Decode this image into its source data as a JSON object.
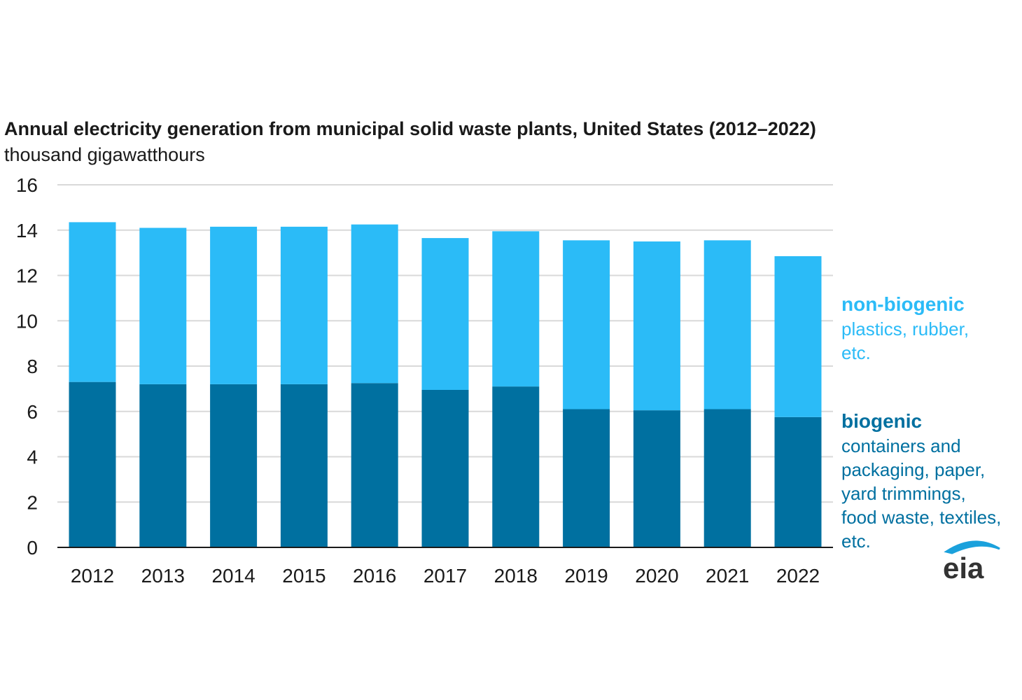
{
  "chart_data": {
    "type": "bar",
    "stacked": true,
    "title": "Annual electricity generation from municipal solid waste plants, United States (2012–2022)",
    "subtitle": "thousand gigawatthours",
    "categories": [
      "2012",
      "2013",
      "2014",
      "2015",
      "2016",
      "2017",
      "2018",
      "2019",
      "2020",
      "2021",
      "2022"
    ],
    "series": [
      {
        "name": "biogenic",
        "description": [
          "containers and",
          "packaging, paper,",
          "yard trimmings,",
          "food waste, textiles,",
          "etc."
        ],
        "color": "#0070a0",
        "values": [
          7.3,
          7.2,
          7.2,
          7.2,
          7.25,
          6.95,
          7.1,
          6.1,
          6.05,
          6.1,
          5.75
        ]
      },
      {
        "name": "non-biogenic",
        "description": [
          "plastics, rubber,",
          "etc."
        ],
        "color": "#2bbbf7",
        "values": [
          7.05,
          6.9,
          6.95,
          6.95,
          7.0,
          6.7,
          6.85,
          7.45,
          7.45,
          7.45,
          7.1
        ]
      }
    ],
    "ylim": [
      0,
      16
    ],
    "yticks": [
      0,
      2,
      4,
      6,
      8,
      10,
      12,
      14,
      16
    ],
    "grid": true,
    "legend_position": "right"
  },
  "logo": {
    "text": "eia",
    "arc_color": "#1ba1dc"
  }
}
